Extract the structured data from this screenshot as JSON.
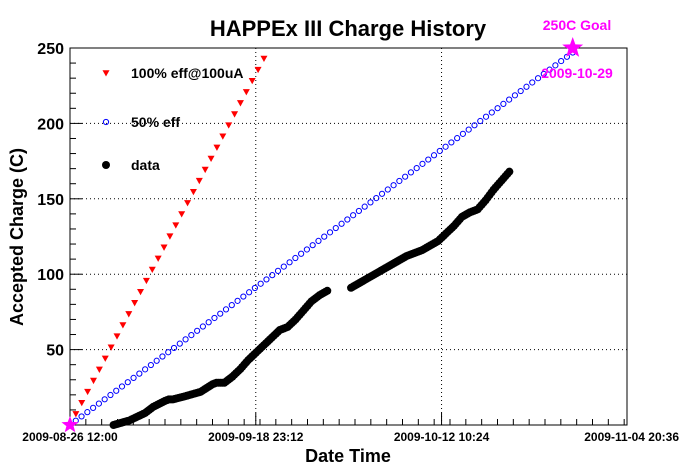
{
  "chart_data": {
    "type": "scatter",
    "title": "HAPPEx III Charge History",
    "xlabel": "Date Time",
    "ylabel": "Accepted Charge (C)",
    "ylim": [
      0,
      250
    ],
    "xlim": [
      "2009-08-26 12:00",
      "2009-11-04 20:36"
    ],
    "x_ticks": [
      "2009-08-26 12:00",
      "2009-09-18 23:12",
      "2009-10-12 10:24",
      "2009-11-04 20:36"
    ],
    "y_ticks": [
      50,
      100,
      150,
      200,
      250
    ],
    "grid": true,
    "legend_position": "top-left",
    "series": [
      {
        "name": "100% eff@100uA",
        "marker": "triangle-down",
        "color": "#ff0000",
        "x_start": "2009-08-26 12:00",
        "x_end": "2009-09-20 00:00",
        "y_start": 0,
        "y_end": 243,
        "n_points": 34
      },
      {
        "name": "50% eff",
        "marker": "open-circle",
        "color": "#0000ff",
        "x_start": "2009-08-26 12:00",
        "x_end": "2009-10-29 00:00",
        "y_start": 0,
        "y_end": 247,
        "n_points": 88
      },
      {
        "name": "data",
        "marker": "filled-circle",
        "color": "#000000",
        "points": [
          [
            "2009-09-01 00:00",
            0
          ],
          [
            "2009-09-03 00:00",
            3
          ],
          [
            "2009-09-05 00:00",
            8
          ],
          [
            "2009-09-06 00:00",
            12
          ],
          [
            "2009-09-07 12:00",
            16
          ],
          [
            "2009-09-08 00:00",
            17
          ],
          [
            "2009-09-08 12:00",
            17
          ],
          [
            "2009-09-10 00:00",
            19
          ],
          [
            "2009-09-12 00:00",
            22
          ],
          [
            "2009-09-13 12:00",
            27
          ],
          [
            "2009-09-14 00:00",
            28
          ],
          [
            "2009-09-15 00:00",
            28
          ],
          [
            "2009-09-16 00:00",
            32
          ],
          [
            "2009-09-17 00:00",
            37
          ],
          [
            "2009-09-18 00:00",
            43
          ],
          [
            "2009-09-19 00:00",
            48
          ],
          [
            "2009-09-20 00:00",
            53
          ],
          [
            "2009-09-21 00:00",
            58
          ],
          [
            "2009-09-22 00:00",
            63
          ],
          [
            "2009-09-23 00:00",
            65
          ],
          [
            "2009-09-24 00:00",
            70
          ],
          [
            "2009-09-25 00:00",
            76
          ],
          [
            "2009-09-26 00:00",
            82
          ],
          [
            "2009-09-27 00:00",
            86
          ],
          [
            "2009-09-28 00:00",
            89
          ],
          [
            "2009-10-01 00:00",
            91
          ],
          [
            "2009-10-02 00:00",
            94
          ],
          [
            "2009-10-03 00:00",
            97
          ],
          [
            "2009-10-05 00:00",
            103
          ],
          [
            "2009-10-07 00:00",
            109
          ],
          [
            "2009-10-08 00:00",
            112
          ],
          [
            "2009-10-10 00:00",
            116
          ],
          [
            "2009-10-12 00:00",
            122
          ],
          [
            "2009-10-13 00:00",
            127
          ],
          [
            "2009-10-14 00:00",
            132
          ],
          [
            "2009-10-15 00:00",
            138
          ],
          [
            "2009-10-16 00:00",
            141
          ],
          [
            "2009-10-17 00:00",
            143
          ],
          [
            "2009-10-18 00:00",
            149
          ],
          [
            "2009-10-19 00:00",
            156
          ],
          [
            "2009-10-20 00:00",
            162
          ],
          [
            "2009-10-21 00:00",
            168
          ]
        ]
      }
    ],
    "annotations": [
      {
        "text": "250C Goal",
        "color": "#ff00ff"
      },
      {
        "text": "2009-10-29",
        "color": "#ff00ff"
      }
    ],
    "goal_marker": {
      "x": "2009-10-29 00:00",
      "y": 250,
      "shape": "star",
      "color": "#ff00ff"
    },
    "start_marker": {
      "x": "2009-08-26 12:00",
      "y": 0,
      "shape": "star",
      "color": "#ff00ff"
    }
  }
}
